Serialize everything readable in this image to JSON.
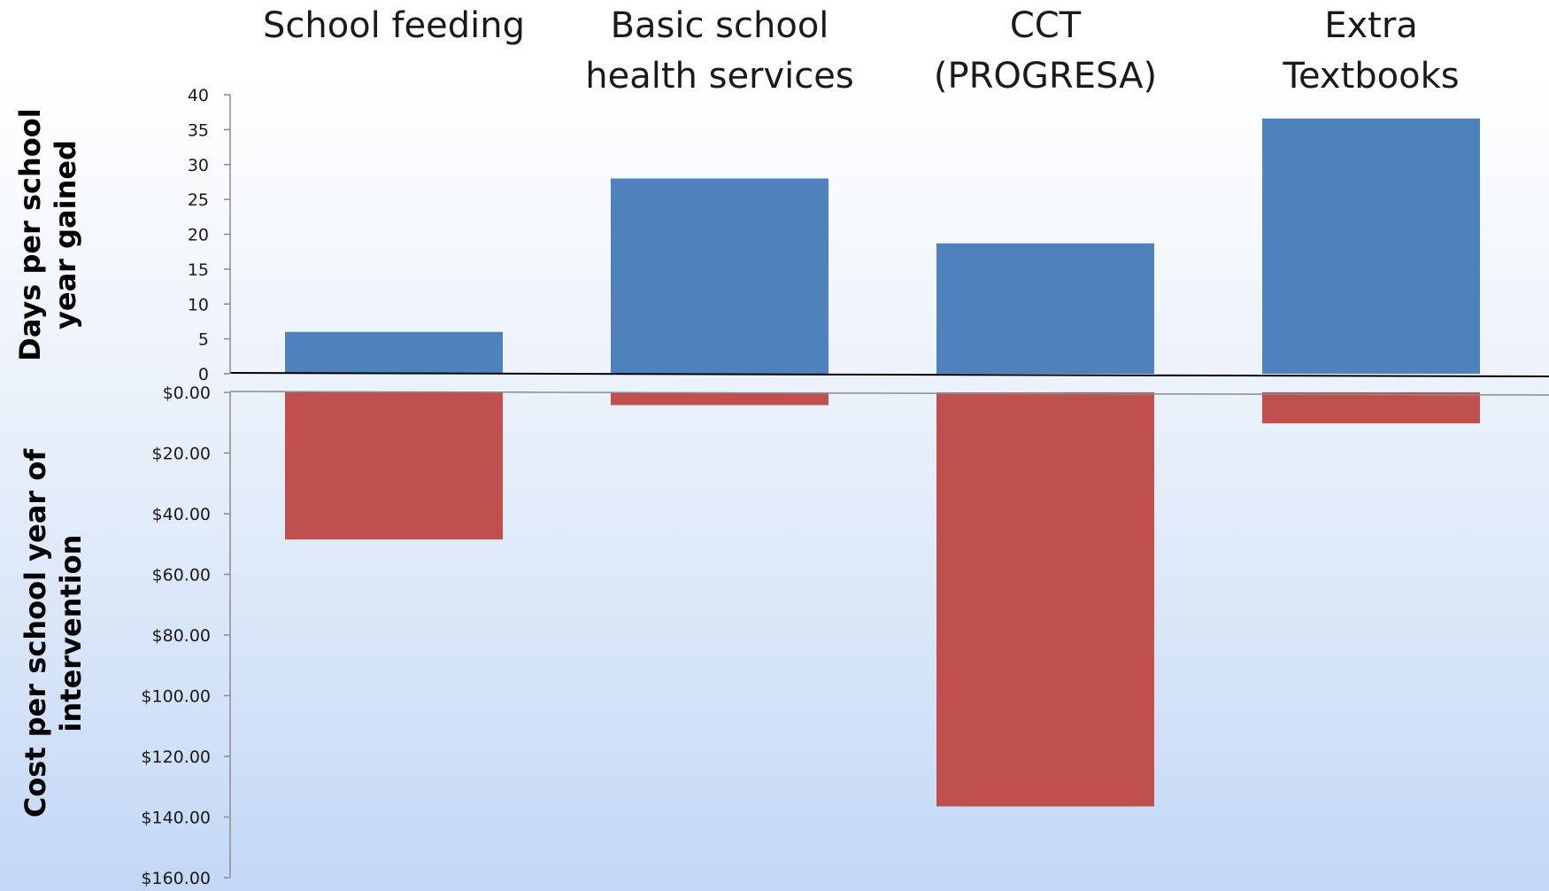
{
  "chart_data": {
    "type": "bar",
    "categories": [
      "School feeding",
      "Basic school health services",
      "CCT (PROGRESA)",
      "Extra Textbooks"
    ],
    "category_label_lines": [
      [
        "School feeding"
      ],
      [
        "Basic school",
        "health services"
      ],
      [
        "CCT",
        "(PROGRESA)"
      ],
      [
        "Extra",
        "Textbooks"
      ]
    ],
    "top_panel": {
      "ylabel_lines": [
        "Days per school",
        "year gained"
      ],
      "ylim": [
        0,
        40
      ],
      "ticks": [
        "0",
        "5",
        "10",
        "15",
        "20",
        "25",
        "30",
        "35",
        "40"
      ],
      "values": [
        6,
        28,
        18.7,
        36.6
      ],
      "color": "#4f81bd"
    },
    "bottom_panel": {
      "ylabel_lines": [
        "Cost per school year of",
        "intervention"
      ],
      "ylim": [
        0,
        160
      ],
      "inverted": true,
      "ticks": [
        "$0.00",
        "$20.00",
        "$40.00",
        "$60.00",
        "$80.00",
        "$100.00",
        "$120.00",
        "$140.00",
        "$160.00"
      ],
      "values": [
        48.5,
        4.2,
        136.5,
        10.2
      ],
      "color": "#c0504d"
    }
  }
}
